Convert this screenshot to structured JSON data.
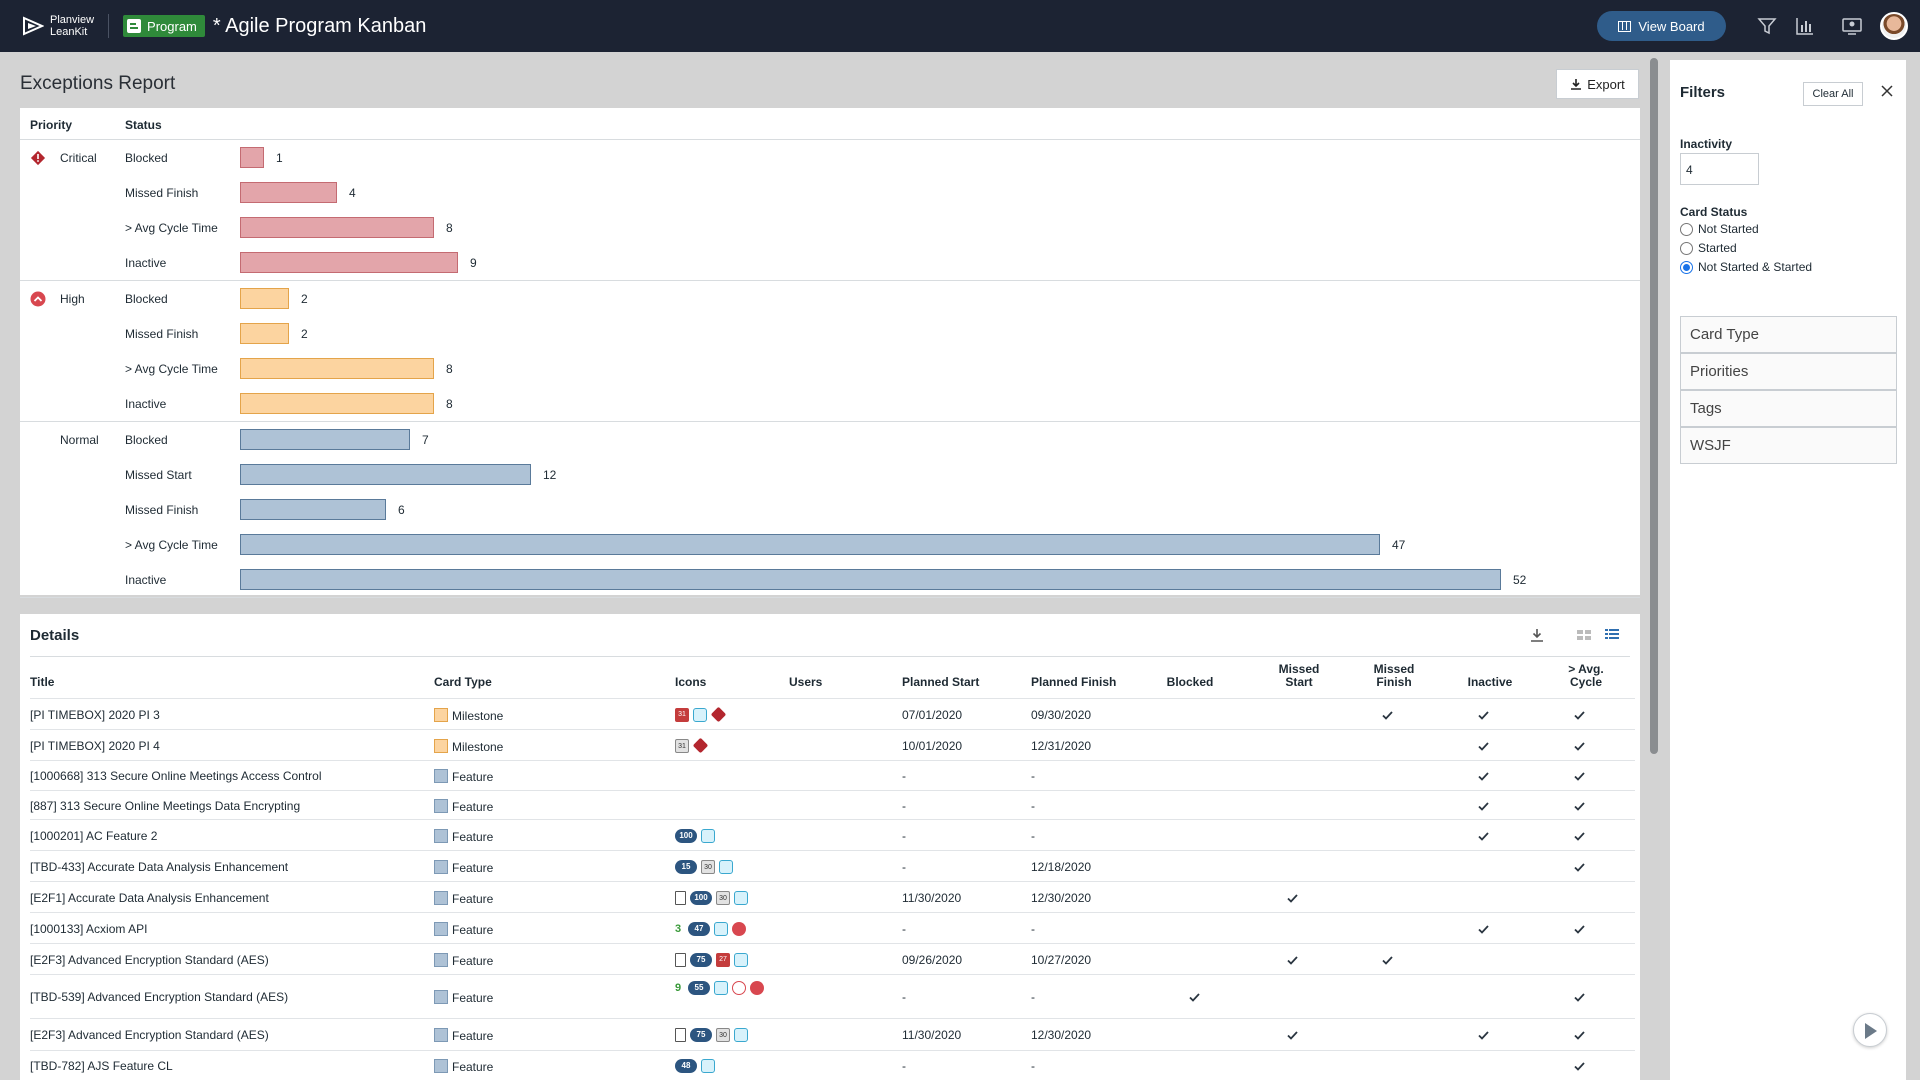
{
  "topbar": {
    "logo_line1": "Planview",
    "logo_line2": "LeanKit",
    "program_label": "Program",
    "board_title": "* Agile Program Kanban",
    "view_board_label": "View Board"
  },
  "report": {
    "title": "Exceptions Report",
    "export_label": "Export",
    "col_priority": "Priority",
    "col_status": "Status",
    "max_value": 52,
    "groups": [
      {
        "priority": "Critical",
        "kind": "crit",
        "rows": [
          {
            "status": "Blocked",
            "value": 1
          },
          {
            "status": "Missed Finish",
            "value": 4
          },
          {
            "status": "> Avg Cycle Time",
            "value": 8
          },
          {
            "status": "Inactive",
            "value": 9
          }
        ]
      },
      {
        "priority": "High",
        "kind": "high",
        "rows": [
          {
            "status": "Blocked",
            "value": 2
          },
          {
            "status": "Missed Finish",
            "value": 2
          },
          {
            "status": "> Avg Cycle Time",
            "value": 8
          },
          {
            "status": "Inactive",
            "value": 8
          }
        ]
      },
      {
        "priority": "Normal",
        "kind": "norm",
        "rows": [
          {
            "status": "Blocked",
            "value": 7
          },
          {
            "status": "Missed Start",
            "value": 12
          },
          {
            "status": "Missed Finish",
            "value": 6
          },
          {
            "status": "> Avg Cycle Time",
            "value": 47
          },
          {
            "status": "Inactive",
            "value": 52
          }
        ]
      }
    ]
  },
  "details": {
    "title": "Details",
    "columns": {
      "title": "Title",
      "card_type": "Card Type",
      "icons": "Icons",
      "users": "Users",
      "planned_start": "Planned Start",
      "planned_finish": "Planned Finish",
      "blocked": "Blocked",
      "missed_start_1": "Missed",
      "missed_start_2": "Start",
      "missed_finish_1": "Missed",
      "missed_finish_2": "Finish",
      "inactive": "Inactive",
      "avg_cycle_1": "> Avg.",
      "avg_cycle_2": "Cycle"
    },
    "rows": [
      {
        "title": "[PI TIMEBOX] 2020 PI 3",
        "type": "Milestone",
        "icons": [
          "cal-red:31",
          "tag",
          "crit"
        ],
        "start": "07/01/2020",
        "finish": "09/30/2020",
        "checks": {
          "blocked": false,
          "missed_start": false,
          "missed_finish": true,
          "inactive": true,
          "avg": true
        }
      },
      {
        "title": "[PI TIMEBOX] 2020 PI 4",
        "type": "Milestone",
        "icons": [
          "cal-gray:31",
          "crit"
        ],
        "start": "10/01/2020",
        "finish": "12/31/2020",
        "checks": {
          "blocked": false,
          "missed_start": false,
          "missed_finish": false,
          "inactive": true,
          "avg": true
        }
      },
      {
        "title": "[1000668] 313 Secure Online Meetings Access Control",
        "type": "Feature",
        "icons": [],
        "start": "-",
        "finish": "-",
        "checks": {
          "blocked": false,
          "missed_start": false,
          "missed_finish": false,
          "inactive": true,
          "avg": true
        }
      },
      {
        "title": "[887] 313 Secure Online Meetings Data Encrypting",
        "type": "Feature",
        "icons": [],
        "start": "-",
        "finish": "-",
        "checks": {
          "blocked": false,
          "missed_start": false,
          "missed_finish": false,
          "inactive": true,
          "avg": true
        }
      },
      {
        "title": "[1000201] AC Feature 2",
        "type": "Feature",
        "icons": [
          "pill:100",
          "tag"
        ],
        "start": "-",
        "finish": "-",
        "checks": {
          "blocked": false,
          "missed_start": false,
          "missed_finish": false,
          "inactive": true,
          "avg": true
        }
      },
      {
        "title": "[TBD-433] Accurate Data Analysis Enhancement",
        "type": "Feature",
        "icons": [
          "pill:15",
          "cal-gray:30",
          "tag"
        ],
        "start": "-",
        "finish": "12/18/2020",
        "checks": {
          "blocked": false,
          "missed_start": false,
          "missed_finish": false,
          "inactive": false,
          "avg": true
        }
      },
      {
        "title": "[E2F1] Accurate Data Analysis Enhancement",
        "type": "Feature",
        "icons": [
          "doc",
          "pill:100",
          "cal-gray:30",
          "tag"
        ],
        "start": "11/30/2020",
        "finish": "12/30/2020",
        "checks": {
          "blocked": false,
          "missed_start": true,
          "missed_finish": false,
          "inactive": false,
          "avg": false
        }
      },
      {
        "title": "[1000133] Acxiom API",
        "type": "Feature",
        "icons": [
          "num:3",
          "pill:47",
          "tag",
          "high"
        ],
        "start": "-",
        "finish": "-",
        "checks": {
          "blocked": false,
          "missed_start": false,
          "missed_finish": false,
          "inactive": true,
          "avg": true
        }
      },
      {
        "title": "[E2F3] Advanced Encryption Standard (AES)",
        "type": "Feature",
        "icons": [
          "doc",
          "pill:75",
          "cal-red:27",
          "tag"
        ],
        "start": "09/26/2020",
        "finish": "10/27/2020",
        "checks": {
          "blocked": false,
          "missed_start": true,
          "missed_finish": true,
          "inactive": false,
          "avg": false
        }
      },
      {
        "title": "[TBD-539] Advanced Encryption Standard (AES)",
        "type": "Feature",
        "icons": [
          "num:9",
          "pill:55",
          "tag",
          "x",
          "high"
        ],
        "start": "-",
        "finish": "-",
        "checks": {
          "blocked": true,
          "missed_start": false,
          "missed_finish": false,
          "inactive": false,
          "avg": true
        }
      },
      {
        "title": "[E2F3] Advanced Encryption Standard (AES)",
        "type": "Feature",
        "icons": [
          "doc",
          "pill:75",
          "cal-gray:30",
          "tag"
        ],
        "start": "11/30/2020",
        "finish": "12/30/2020",
        "checks": {
          "blocked": false,
          "missed_start": true,
          "missed_finish": false,
          "inactive": true,
          "avg": true
        }
      },
      {
        "title": "[TBD-782] AJS Feature CL",
        "type": "Feature",
        "icons": [
          "pill:48",
          "tag"
        ],
        "start": "-",
        "finish": "-",
        "checks": {
          "blocked": false,
          "missed_start": false,
          "missed_finish": false,
          "inactive": false,
          "avg": true
        }
      }
    ]
  },
  "filters": {
    "title": "Filters",
    "clear_all": "Clear All",
    "inactivity_label": "Inactivity",
    "inactivity_value": "4",
    "card_status_label": "Card Status",
    "card_status_options": [
      "Not Started",
      "Started",
      "Not Started & Started"
    ],
    "card_status_selected": "Not Started & Started",
    "sections": [
      "Card Type",
      "Priorities",
      "Tags",
      "WSJF"
    ]
  }
}
